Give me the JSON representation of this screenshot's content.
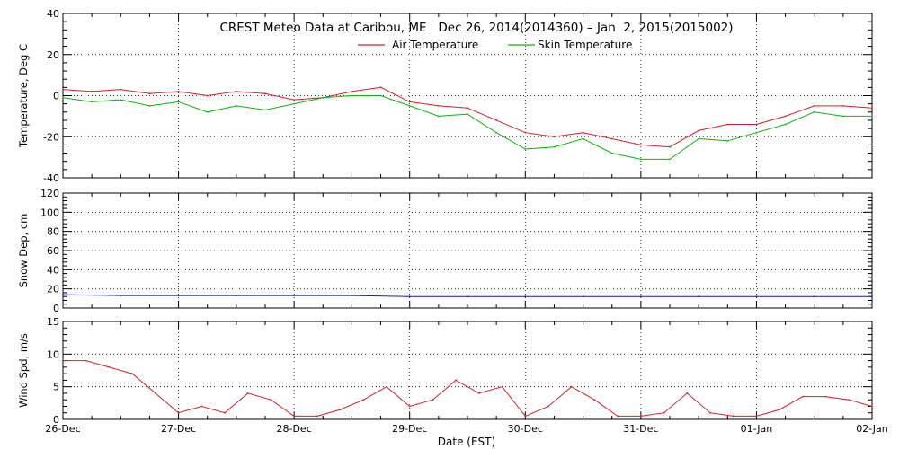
{
  "figure": {
    "title": "CREST Meteo Data at Caribou, ME   Dec 26, 2014(2014360) – Jan  2, 2015(2015002)",
    "xlabel": "Date (EST)",
    "x_tick_labels": [
      "26-Dec",
      "27-Dec",
      "28-Dec",
      "29-Dec",
      "30-Dec",
      "31-Dec",
      "01-Jan",
      "02-Jan"
    ]
  },
  "chart_data": [
    {
      "type": "line",
      "panel": "temperature",
      "ylabel": "Temperature, Deg C",
      "ylim": [
        -40,
        40
      ],
      "yticks": [
        -40,
        -20,
        0,
        20,
        40
      ],
      "xlim": [
        0,
        7
      ],
      "grid": true,
      "legend": "top-center",
      "series": [
        {
          "name": "Air Temperature",
          "color": "#d0202a",
          "x": [
            0,
            0.25,
            0.5,
            0.75,
            1.0,
            1.25,
            1.5,
            1.75,
            2.0,
            2.25,
            2.5,
            2.75,
            3.0,
            3.25,
            3.5,
            3.75,
            4.0,
            4.25,
            4.5,
            4.75,
            5.0,
            5.25,
            5.5,
            5.75,
            6.0,
            6.25,
            6.5,
            6.75,
            7.0
          ],
          "y": [
            3,
            2,
            3,
            1,
            2,
            0,
            2,
            1,
            -2,
            -1,
            2,
            4,
            -3,
            -5,
            -6,
            -12,
            -18,
            -20,
            -18,
            -21,
            -24,
            -25,
            -17,
            -14,
            -14,
            -10,
            -5,
            -5,
            -6
          ]
        },
        {
          "name": "Skin Temperature",
          "color": "#10b010",
          "x": [
            0,
            0.25,
            0.5,
            0.75,
            1.0,
            1.25,
            1.5,
            1.75,
            2.0,
            2.25,
            2.5,
            2.75,
            3.0,
            3.25,
            3.5,
            3.75,
            4.0,
            4.25,
            4.5,
            4.75,
            5.0,
            5.25,
            5.5,
            5.75,
            6.0,
            6.25,
            6.5,
            6.75,
            7.0
          ],
          "y": [
            -1,
            -3,
            -2,
            -5,
            -3,
            -8,
            -5,
            -7,
            -4,
            -1,
            0,
            0,
            -5,
            -10,
            -9,
            -18,
            -26,
            -25,
            -21,
            -28,
            -31,
            -31,
            -21,
            -22,
            -18,
            -14,
            -8,
            -10,
            -10
          ]
        }
      ]
    },
    {
      "type": "line",
      "panel": "snow-depth",
      "ylabel": "Snow Dep, cm",
      "ylim": [
        0,
        120
      ],
      "yticks": [
        0,
        20,
        40,
        60,
        80,
        100,
        120
      ],
      "xlim": [
        0,
        7
      ],
      "grid": true,
      "series": [
        {
          "color": "#1a1aa8",
          "x": [
            0,
            0.5,
            1.0,
            1.5,
            2.0,
            2.5,
            3.0,
            3.5,
            4.0,
            4.5,
            5.0,
            5.5,
            6.0,
            6.5,
            7.0
          ],
          "y": [
            14,
            13,
            13,
            13,
            13,
            13,
            12,
            12,
            12,
            12,
            12,
            12,
            12,
            12,
            12
          ]
        }
      ]
    },
    {
      "type": "line",
      "panel": "wind-speed",
      "ylabel": "Wind Spd, m/s",
      "ylim": [
        0,
        15
      ],
      "yticks": [
        0,
        5,
        10,
        15
      ],
      "xlim": [
        0,
        7
      ],
      "grid": true,
      "series": [
        {
          "color": "#d0202a",
          "x": [
            0,
            0.2,
            0.4,
            0.6,
            0.8,
            1.0,
            1.2,
            1.4,
            1.6,
            1.8,
            2.0,
            2.2,
            2.4,
            2.6,
            2.8,
            3.0,
            3.2,
            3.4,
            3.6,
            3.8,
            4.0,
            4.2,
            4.4,
            4.6,
            4.8,
            5.0,
            5.2,
            5.4,
            5.6,
            5.8,
            6.0,
            6.2,
            6.4,
            6.6,
            6.8,
            7.0
          ],
          "y": [
            9,
            9,
            8,
            7,
            4,
            1,
            2,
            1,
            4,
            3,
            0.5,
            0.5,
            1.5,
            3,
            5,
            2,
            3,
            6,
            4,
            5,
            0.5,
            2,
            5,
            3,
            0.5,
            0.5,
            1,
            4,
            1,
            0.5,
            0.5,
            1.5,
            3.5,
            3.5,
            3,
            2
          ]
        }
      ]
    }
  ]
}
